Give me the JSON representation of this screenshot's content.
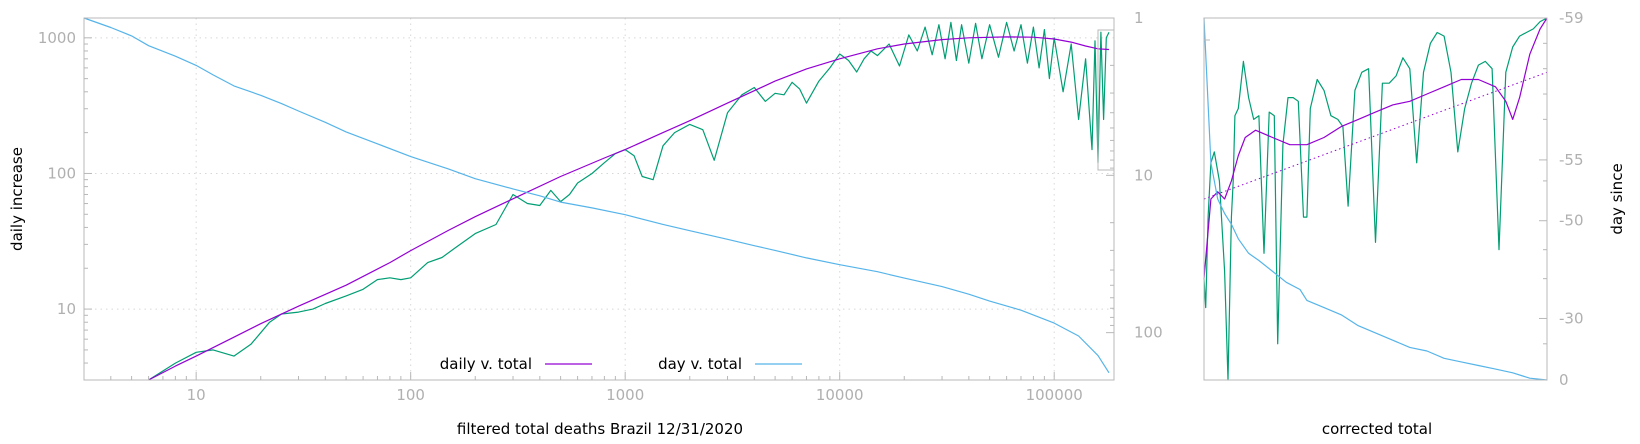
{
  "colors": {
    "daily": "#9400d3",
    "day": "#56b4e9",
    "raw": "#009e73",
    "axis": "#b8b8b8",
    "tick_text": "#b0b0b0"
  },
  "legend": {
    "daily_label": "daily v. total",
    "day_label": "day v. total"
  },
  "chart_data": [
    {
      "type": "line",
      "title": "",
      "xlabel": "filtered total deaths Brazil 12/31/2020",
      "ylabel": "daily increase",
      "y2label": "",
      "x_scale": "log",
      "y_scale": "log",
      "y2_scale": "log-reversed",
      "xlim": [
        3,
        190000
      ],
      "ylim": [
        3,
        1400
      ],
      "y2lim": [
        1,
        200
      ],
      "grid": true,
      "legend_position": "bottom-center",
      "x_ticks": [
        "10",
        "100",
        "1000",
        "10000",
        "100000"
      ],
      "x_tick_values": [
        10,
        100,
        1000,
        10000,
        100000
      ],
      "y_ticks": [
        "10",
        "100",
        "1000"
      ],
      "y_tick_values": [
        10,
        100,
        1000
      ],
      "y2_ticks": [
        "1",
        "10",
        "100"
      ],
      "y2_tick_values": [
        1,
        10,
        100
      ],
      "series": [
        {
          "name": "daily v. total",
          "color_key": "daily",
          "axis": "y",
          "x": [
            6,
            8,
            10,
            15,
            20,
            30,
            50,
            80,
            100,
            150,
            200,
            300,
            500,
            800,
            1000,
            1500,
            2000,
            3000,
            5000,
            7000,
            10000,
            15000,
            20000,
            30000,
            40000,
            60000,
            80000,
            100000,
            120000,
            140000,
            160000,
            180000
          ],
          "y": [
            3,
            3.8,
            4.5,
            6.2,
            7.8,
            10.5,
            15,
            22,
            27,
            38,
            48,
            65,
            95,
            130,
            150,
            200,
            245,
            330,
            480,
            590,
            700,
            830,
            900,
            970,
            1000,
            1015,
            1010,
            980,
            930,
            870,
            830,
            820
          ]
        },
        {
          "name": "day v. total",
          "color_key": "day",
          "axis": "y2",
          "x": [
            3,
            4,
            5,
            6,
            8,
            10,
            12,
            15,
            20,
            25,
            30,
            40,
            50,
            70,
            100,
            150,
            200,
            300,
            400,
            500,
            700,
            1000,
            1500,
            2000,
            3000,
            4000,
            5000,
            7000,
            10000,
            15000,
            20000,
            30000,
            40000,
            50000,
            70000,
            100000,
            130000,
            160000,
            180000
          ],
          "y": [
            1,
            1.15,
            1.3,
            1.5,
            1.75,
            2,
            2.3,
            2.7,
            3.1,
            3.5,
            3.9,
            4.6,
            5.3,
            6.3,
            7.6,
            9.1,
            10.5,
            12.2,
            13.5,
            14.8,
            16.1,
            17.8,
            20.5,
            22.5,
            25.5,
            28,
            30,
            33.5,
            37,
            41,
            45,
            51,
            57,
            63,
            72,
            87,
            105,
            140,
            180
          ]
        },
        {
          "name": "",
          "color_key": "raw",
          "axis": "y",
          "x": [
            6,
            8,
            10,
            12,
            15,
            18,
            22,
            25,
            30,
            35,
            40,
            50,
            60,
            70,
            80,
            90,
            100,
            120,
            140,
            160,
            200,
            250,
            300,
            350,
            400,
            450,
            500,
            550,
            600,
            700,
            800,
            900,
            1000,
            1100,
            1200,
            1350,
            1500,
            1700,
            2000,
            2300,
            2600,
            3000,
            3500,
            4000,
            4500,
            5000,
            5500,
            6000,
            6500,
            7000,
            8000,
            9000,
            10000,
            11000,
            12000,
            13000,
            14000,
            15000,
            17000,
            19000,
            21000,
            23000,
            25000,
            27000,
            29000,
            31000,
            33000,
            35000,
            37000,
            40000,
            43000,
            46000,
            50000,
            55000,
            60000,
            65000,
            70000,
            75000,
            80000,
            85000,
            90000,
            95000,
            100000,
            110000,
            120000,
            130000,
            140000,
            150000,
            155000,
            160000,
            165000,
            170000,
            175000,
            180000
          ],
          "y": [
            3,
            4,
            4.8,
            5,
            4.5,
            5.5,
            8,
            9.2,
            9.5,
            10,
            11,
            12.5,
            14,
            16.5,
            17,
            16.5,
            17,
            22,
            24,
            28,
            36,
            42,
            70,
            60,
            58,
            75,
            62,
            70,
            85,
            100,
            120,
            140,
            150,
            135,
            95,
            90,
            160,
            200,
            230,
            210,
            125,
            280,
            380,
            430,
            340,
            390,
            380,
            470,
            420,
            330,
            480,
            600,
            760,
            680,
            560,
            700,
            800,
            740,
            900,
            620,
            1050,
            800,
            1200,
            750,
            1250,
            700,
            1300,
            680,
            1250,
            650,
            1280,
            700,
            1250,
            720,
            1300,
            800,
            1250,
            650,
            1200,
            600,
            1150,
            500,
            1000,
            400,
            900,
            250,
            700,
            150,
            950,
            120,
            1100,
            250,
            1000,
            1100
          ]
        }
      ]
    },
    {
      "type": "line",
      "title": "",
      "xlabel": "corrected total",
      "ylabel": "",
      "y2label": "day since",
      "y2_ticks": [
        "-59",
        "-55",
        "-50",
        "-30",
        "0"
      ],
      "y2_tick_values": [
        -59,
        -55,
        -50,
        -30,
        0
      ],
      "grid": false,
      "x_scale": "linear",
      "xlim": [
        0,
        1
      ],
      "ylim": [
        0,
        1
      ],
      "y2lim": [
        -59,
        0
      ],
      "series": [
        {
          "name": "",
          "color_key": "raw",
          "x": [
            0,
            0.005,
            0.012,
            0.02,
            0.03,
            0.045,
            0.06,
            0.07,
            0.08,
            0.085,
            0.09,
            0.1,
            0.115,
            0.13,
            0.145,
            0.16,
            0.175,
            0.19,
            0.205,
            0.215,
            0.23,
            0.245,
            0.26,
            0.275,
            0.29,
            0.3,
            0.31,
            0.33,
            0.35,
            0.37,
            0.39,
            0.405,
            0.42,
            0.44,
            0.46,
            0.48,
            0.5,
            0.52,
            0.54,
            0.56,
            0.58,
            0.6,
            0.62,
            0.64,
            0.66,
            0.68,
            0.7,
            0.72,
            0.74,
            0.76,
            0.78,
            0.8,
            0.82,
            0.84,
            0.86,
            0.88,
            0.9,
            0.92,
            0.94,
            0.96,
            0.98,
            1
          ],
          "y": [
            0.28,
            0.2,
            0.45,
            0.6,
            0.63,
            0.55,
            0.3,
            0.0,
            0.45,
            0.55,
            0.73,
            0.75,
            0.88,
            0.78,
            0.72,
            0.73,
            0.35,
            0.74,
            0.73,
            0.1,
            0.65,
            0.78,
            0.78,
            0.77,
            0.45,
            0.45,
            0.75,
            0.83,
            0.8,
            0.73,
            0.72,
            0.7,
            0.48,
            0.8,
            0.85,
            0.86,
            0.38,
            0.82,
            0.82,
            0.84,
            0.89,
            0.86,
            0.6,
            0.85,
            0.93,
            0.96,
            0.95,
            0.85,
            0.63,
            0.75,
            0.82,
            0.87,
            0.88,
            0.86,
            0.36,
            0.85,
            0.92,
            0.95,
            0.96,
            0.97,
            0.99,
            1
          ]
        },
        {
          "name": "",
          "color_key": "daily",
          "x": [
            0,
            0.02,
            0.04,
            0.06,
            0.08,
            0.1,
            0.12,
            0.15,
            0.2,
            0.25,
            0.3,
            0.35,
            0.4,
            0.45,
            0.5,
            0.55,
            0.6,
            0.65,
            0.7,
            0.75,
            0.8,
            0.85,
            0.88,
            0.9,
            0.92,
            0.95,
            0.98,
            1
          ],
          "y": [
            0.28,
            0.5,
            0.52,
            0.5,
            0.55,
            0.62,
            0.67,
            0.69,
            0.67,
            0.65,
            0.65,
            0.67,
            0.7,
            0.72,
            0.74,
            0.76,
            0.77,
            0.79,
            0.81,
            0.83,
            0.83,
            0.81,
            0.77,
            0.72,
            0.78,
            0.9,
            0.97,
            1
          ]
        },
        {
          "name": "",
          "color_key": "day",
          "x": [
            0,
            0.02,
            0.04,
            0.06,
            0.08,
            0.1,
            0.13,
            0.16,
            0.2,
            0.24,
            0.28,
            0.3,
            0.35,
            0.4,
            0.45,
            0.5,
            0.55,
            0.6,
            0.65,
            0.7,
            0.75,
            0.8,
            0.85,
            0.9,
            0.95,
            1
          ],
          "y": [
            1,
            0.6,
            0.5,
            0.46,
            0.43,
            0.39,
            0.35,
            0.33,
            0.3,
            0.27,
            0.25,
            0.22,
            0.2,
            0.18,
            0.15,
            0.13,
            0.11,
            0.09,
            0.08,
            0.06,
            0.05,
            0.04,
            0.03,
            0.02,
            0.005,
            0
          ]
        },
        {
          "name": "",
          "color_key": "daily",
          "style": "dotted",
          "x": [
            0,
            1
          ],
          "y": [
            0.5,
            0.85
          ]
        }
      ]
    }
  ]
}
